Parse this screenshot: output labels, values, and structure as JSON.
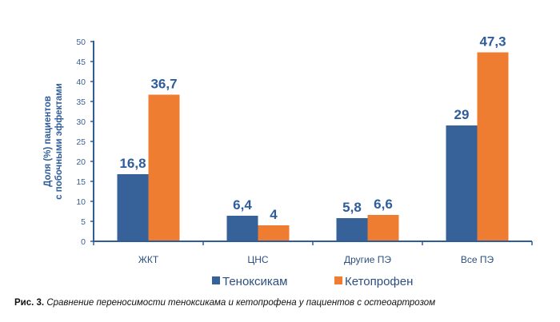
{
  "chart_data": {
    "type": "bar",
    "categories": [
      "ЖКТ",
      "ЦНС",
      "Другие ПЭ",
      "Все ПЭ"
    ],
    "series": [
      {
        "name": "Теноксикам",
        "values": [
          16.8,
          6.4,
          5.8,
          29
        ],
        "labels": [
          "16,8",
          "6,4",
          "5,8",
          "29"
        ],
        "color": "#366199"
      },
      {
        "name": "Кетопрофен",
        "values": [
          36.7,
          4,
          6.6,
          47.3
        ],
        "labels": [
          "36,7",
          "4",
          "6,6",
          "47,3"
        ],
        "color": "#ef7d31"
      }
    ],
    "ylabel_line1": "Доля (%) пациентов",
    "ylabel_line2": "с побочными эффектами",
    "ylim": [
      0,
      50
    ],
    "yticks": [
      0,
      5,
      10,
      15,
      20,
      25,
      30,
      35,
      40,
      45,
      50
    ],
    "legend_position": "bottom",
    "grid": false
  },
  "caption": {
    "label": "Рис. 3.",
    "text": "Сравнение переносимости теноксикама и кетопрофена у пациентов с остеоартрозом"
  },
  "colors": {
    "axis": "#2f5d9a",
    "text": "#2f5d9a"
  }
}
